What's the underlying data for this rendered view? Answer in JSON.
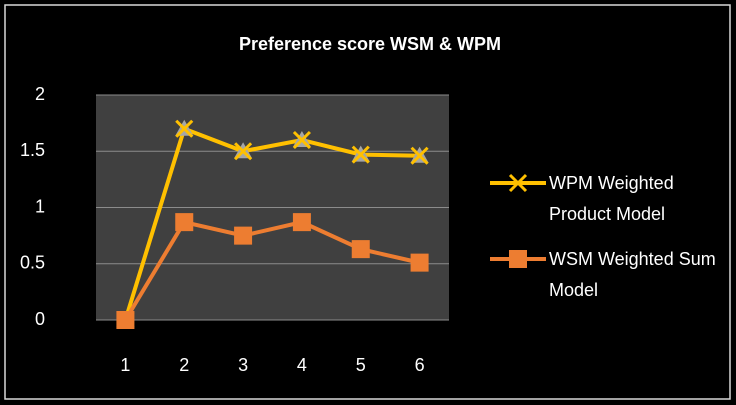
{
  "chart_data": {
    "type": "line",
    "title": "Preference score WSM & WPM",
    "categories": [
      "1",
      "2",
      "3",
      "4",
      "5",
      "6"
    ],
    "series": [
      {
        "name": "WPM Weighted Product Model",
        "color": "#ffc000",
        "marker": "x",
        "values": [
          0,
          1.7,
          1.5,
          1.6,
          1.47,
          1.46
        ]
      },
      {
        "name": "WSM Weighted Sum Model",
        "color": "#ed7d31",
        "marker": "square",
        "values": [
          0,
          0.87,
          0.75,
          0.87,
          0.63,
          0.51
        ]
      }
    ],
    "ylim": [
      0,
      2
    ],
    "yticks": [
      0,
      0.5,
      1,
      1.5,
      2
    ],
    "grid": true,
    "legend": "right"
  }
}
